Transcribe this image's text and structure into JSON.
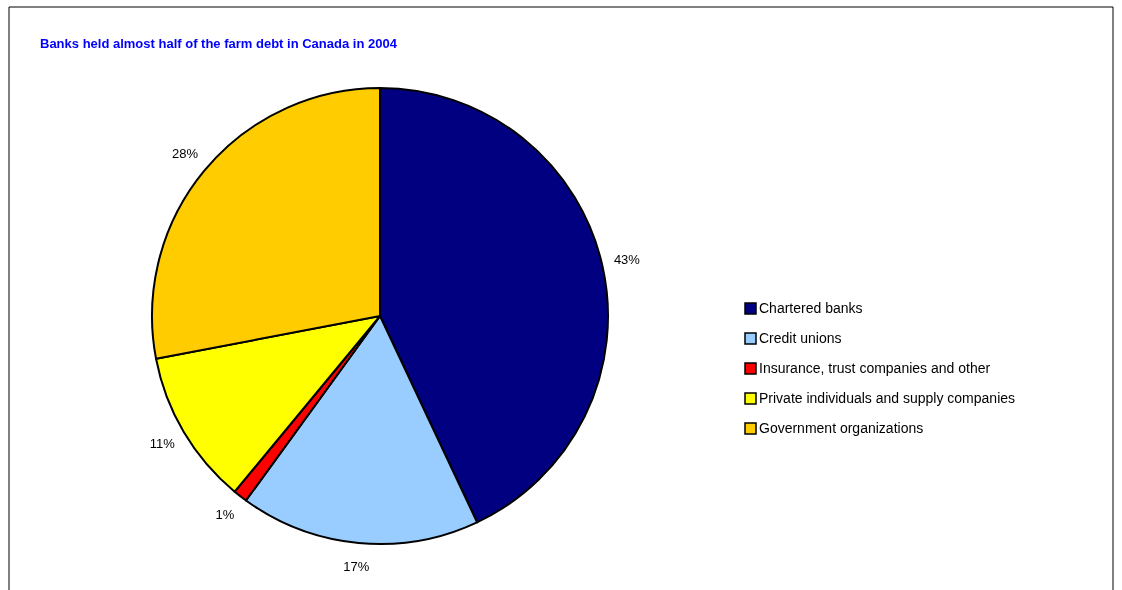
{
  "chart_data": {
    "type": "pie",
    "title": "Banks held almost half of the farm debt in Canada in 2004",
    "categories": [
      "Chartered banks",
      "Credit unions",
      "Insurance, trust companies and other",
      "Private individuals and supply companies",
      "Government organizations"
    ],
    "values": [
      43,
      17,
      1,
      11,
      28
    ],
    "colors": [
      "#000080",
      "#99ccff",
      "#ff0000",
      "#ffff00",
      "#ffcc00"
    ],
    "value_labels": [
      "43%",
      "17%",
      "1%",
      "11%",
      "28%"
    ],
    "legend": "right"
  }
}
